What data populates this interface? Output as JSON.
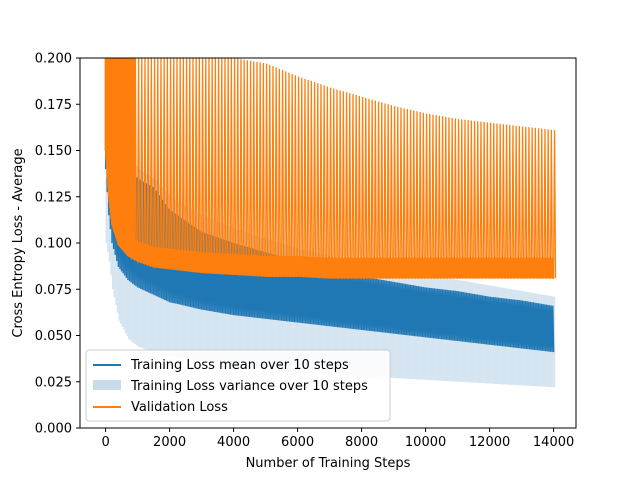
{
  "chart_data": {
    "type": "line",
    "title": "",
    "xlabel": "Number of Training Steps",
    "ylabel": "Cross Entropy Loss - Average",
    "xlim": [
      -800,
      14700
    ],
    "ylim": [
      0.0,
      0.2
    ],
    "xticks": [
      0,
      2000,
      4000,
      6000,
      8000,
      10000,
      12000,
      14000
    ],
    "xtick_labels": [
      "0",
      "2000",
      "4000",
      "6000",
      "8000",
      "10000",
      "12000",
      "14000"
    ],
    "yticks": [
      0.0,
      0.025,
      0.05,
      0.075,
      0.1,
      0.125,
      0.15,
      0.175,
      0.2
    ],
    "ytick_labels": [
      "0.000",
      "0.025",
      "0.050",
      "0.075",
      "0.100",
      "0.125",
      "0.150",
      "0.175",
      "0.200"
    ],
    "grid": false,
    "legend_position": "lower-left",
    "colors": {
      "training_mean": "#1f77b4",
      "training_variance": "#c6dbeb",
      "validation": "#ff7f0e"
    },
    "series": [
      {
        "name": "Training Loss mean over 10 steps",
        "kind": "line",
        "x": [
          0,
          100,
          200,
          400,
          700,
          1000,
          1500,
          2000,
          3000,
          4000,
          5000,
          6000,
          7000,
          8000,
          9000,
          10000,
          11000,
          12000,
          13000,
          14000
        ],
        "lower": [
          0.14,
          0.115,
          0.1,
          0.087,
          0.08,
          0.076,
          0.072,
          0.068,
          0.064,
          0.061,
          0.059,
          0.057,
          0.055,
          0.053,
          0.051,
          0.049,
          0.047,
          0.045,
          0.043,
          0.041
        ],
        "upper": [
          0.2,
          0.2,
          0.17,
          0.15,
          0.14,
          0.135,
          0.13,
          0.118,
          0.106,
          0.1,
          0.095,
          0.09,
          0.085,
          0.082,
          0.079,
          0.076,
          0.074,
          0.071,
          0.069,
          0.066
        ]
      },
      {
        "name": "Training Loss variance over 10 steps",
        "kind": "band",
        "x": [
          0,
          100,
          200,
          400,
          700,
          1000,
          1500,
          2000,
          3000,
          4000,
          5000,
          6000,
          7000,
          8000,
          9000,
          10000,
          11000,
          12000,
          13000,
          14000
        ],
        "lower": [
          0.1,
          0.09,
          0.075,
          0.058,
          0.048,
          0.044,
          0.041,
          0.039,
          0.036,
          0.034,
          0.032,
          0.03,
          0.029,
          0.028,
          0.027,
          0.026,
          0.025,
          0.024,
          0.023,
          0.022
        ],
        "upper": [
          0.2,
          0.2,
          0.18,
          0.16,
          0.15,
          0.14,
          0.135,
          0.125,
          0.115,
          0.108,
          0.102,
          0.097,
          0.093,
          0.089,
          0.086,
          0.083,
          0.08,
          0.077,
          0.074,
          0.071
        ]
      },
      {
        "name": "Validation Loss",
        "kind": "line",
        "x": [
          0,
          100,
          200,
          400,
          700,
          1000,
          1500,
          2000,
          3000,
          4000,
          5000,
          6000,
          7000,
          8000,
          9000,
          10000,
          11000,
          12000,
          13000,
          14000
        ],
        "lower": [
          0.15,
          0.125,
          0.11,
          0.099,
          0.093,
          0.09,
          0.087,
          0.086,
          0.084,
          0.083,
          0.082,
          0.082,
          0.081,
          0.081,
          0.081,
          0.081,
          0.081,
          0.081,
          0.081,
          0.081
        ],
        "upper": [
          0.2,
          0.2,
          0.2,
          0.2,
          0.2,
          0.2,
          0.2,
          0.2,
          0.2,
          0.2,
          0.197,
          0.19,
          0.184,
          0.179,
          0.174,
          0.17,
          0.167,
          0.165,
          0.163,
          0.161
        ],
        "floor_upper": [
          0.2,
          0.2,
          0.2,
          0.2,
          0.2,
          0.2,
          0.2,
          0.2,
          0.2,
          0.2,
          0.2,
          0.2,
          0.2,
          0.2,
          0.2,
          0.2,
          0.2,
          0.2,
          0.2,
          0.2
        ]
      }
    ]
  }
}
